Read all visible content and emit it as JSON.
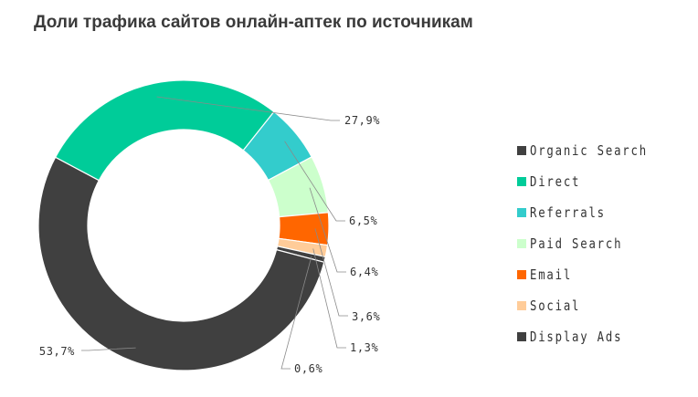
{
  "title": "Доли трафика сайтов онлайн-аптек по источникам",
  "chart_data": {
    "type": "donut",
    "title": "Доли трафика сайтов онлайн-аптек по источникам",
    "legend_position": "right",
    "series": [
      {
        "name": "Organic Search",
        "value": 53.7,
        "label": "53,7%",
        "color": "#404040"
      },
      {
        "name": "Direct",
        "value": 27.9,
        "label": "27,9%",
        "color": "#00cc99"
      },
      {
        "name": "Referrals",
        "value": 6.5,
        "label": "6,5%",
        "color": "#33cccc"
      },
      {
        "name": "Paid Search",
        "value": 6.4,
        "label": "6,4%",
        "color": "#ccffcc"
      },
      {
        "name": "Email",
        "value": 3.6,
        "label": "3,6%",
        "color": "#ff6600"
      },
      {
        "name": "Social",
        "value": 1.3,
        "label": "1,3%",
        "color": "#ffcc99"
      },
      {
        "name": "Display Ads",
        "value": 0.6,
        "label": "0,6%",
        "color": "#404040"
      }
    ]
  }
}
